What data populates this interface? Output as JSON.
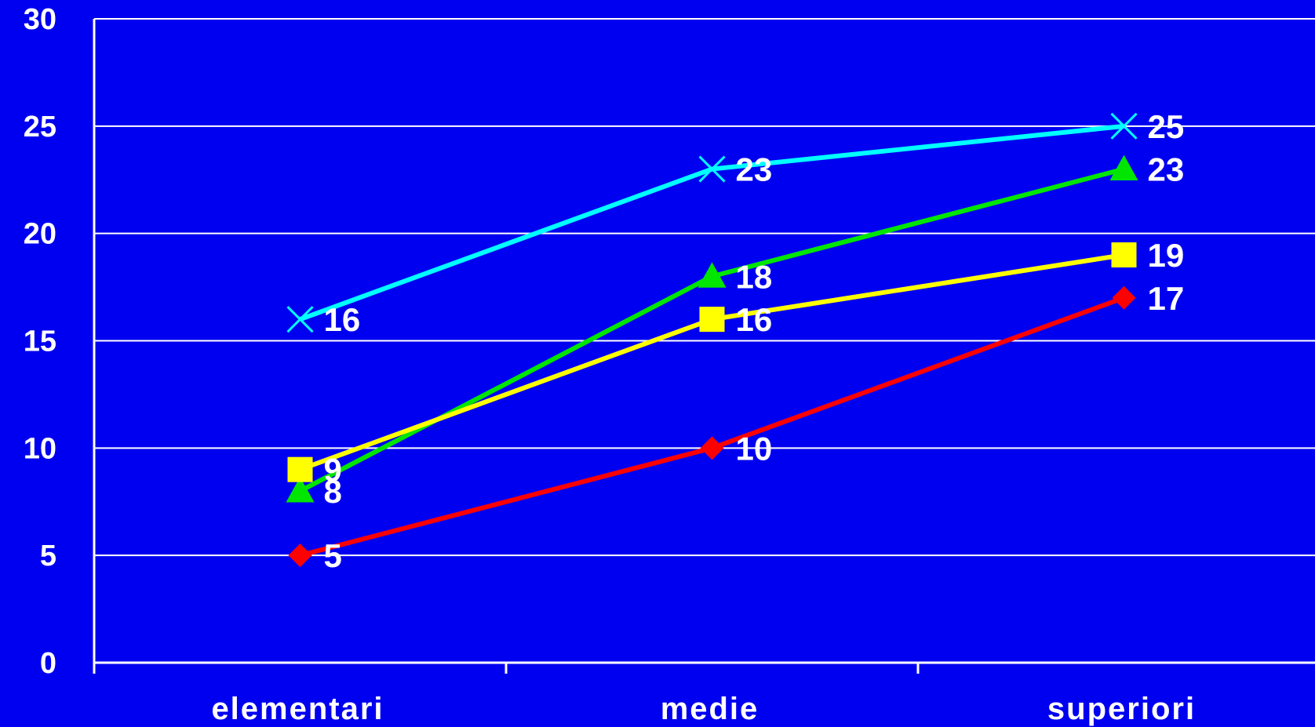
{
  "chart_data": {
    "type": "line",
    "background": "#0000F0",
    "grid_color": "#FFFFFF",
    "grid": true,
    "categories": [
      "elementari",
      "medie",
      "superiori"
    ],
    "ylim": [
      0,
      30
    ],
    "yticks": [
      0,
      5,
      10,
      15,
      20,
      25,
      30
    ],
    "title": "",
    "xlabel": "",
    "ylabel": "",
    "series": [
      {
        "color": "#00FFFF",
        "marker": "x",
        "values": [
          16,
          23,
          25
        ]
      },
      {
        "color": "#00E600",
        "marker": "triangle",
        "values": [
          8,
          18,
          23
        ]
      },
      {
        "color": "#FFFF00",
        "marker": "square",
        "values": [
          9,
          16,
          19
        ]
      },
      {
        "color": "#FF0000",
        "marker": "diamond",
        "values": [
          5,
          10,
          17
        ]
      }
    ]
  }
}
